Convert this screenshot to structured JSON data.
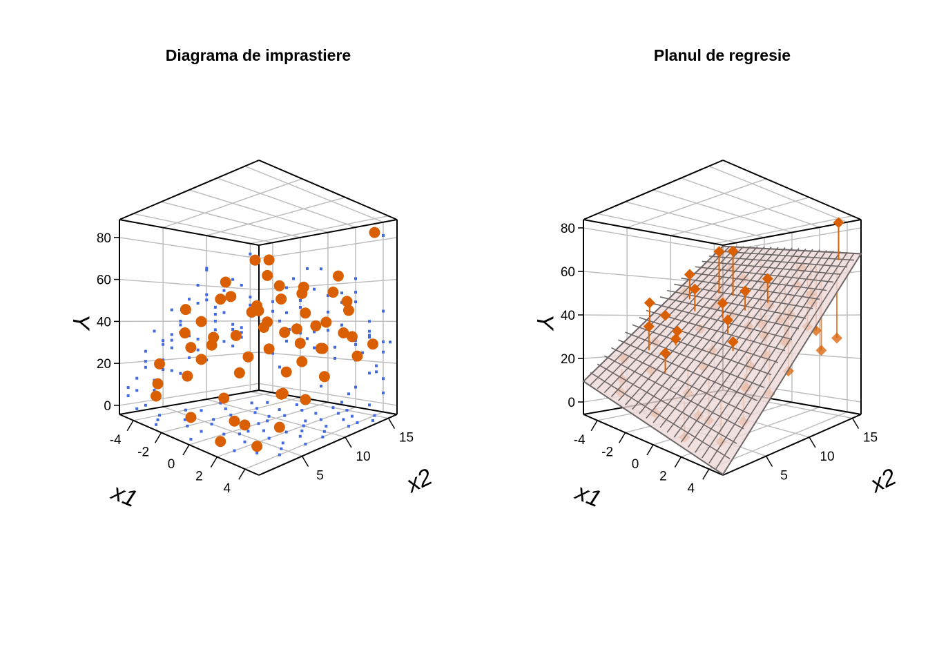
{
  "chart_data": [
    {
      "type": "scatter3d",
      "title": "Diagrama de imprastiere",
      "xlabel": "x1",
      "ylabel": "x2",
      "zlabel": "Y",
      "x1_range": [
        -5,
        5
      ],
      "x2_range": [
        0,
        16
      ],
      "y_range": [
        -4.3,
        88.5
      ],
      "x1_ticks": [
        "-4",
        "-2",
        "0",
        "2",
        "4"
      ],
      "x2_ticks": [
        "5",
        "10",
        "15"
      ],
      "y_ticks": [
        "0",
        "20",
        "40",
        "60",
        "80"
      ],
      "point_color": "#d95f02",
      "shadow_color": "#4169e1",
      "grid": true
    },
    {
      "type": "scatter3d+plane",
      "title": "Planul de regresie",
      "xlabel": "x1",
      "ylabel": "x2",
      "zlabel": "Y",
      "x1_range": [
        -5,
        5
      ],
      "x2_range": [
        0,
        16
      ],
      "y_range": [
        -5.7,
        83.8
      ],
      "x1_ticks": [
        "-4",
        "-2",
        "0",
        "2",
        "4"
      ],
      "x2_ticks": [
        "5",
        "10",
        "15"
      ],
      "y_ticks": [
        "0",
        "20",
        "40",
        "60",
        "80"
      ],
      "plane": {
        "intercept": 2,
        "b_x1": -1.5,
        "b_x2": 4.6
      },
      "point_color": "#d95f02",
      "plane_fill": "#ecd8d8",
      "plane_grid": "#6e6666",
      "grid": true
    }
  ],
  "points": [
    [
      -3.5,
      2,
      12
    ],
    [
      -2.8,
      4,
      35
    ],
    [
      -4,
      6,
      46
    ],
    [
      -1,
      3,
      25
    ],
    [
      0.5,
      5,
      20
    ],
    [
      2,
      2,
      6
    ],
    [
      3,
      3,
      -2
    ],
    [
      -2,
      8,
      52
    ],
    [
      -3,
      9,
      60
    ],
    [
      -1.5,
      10,
      70
    ],
    [
      -0.5,
      10,
      69
    ],
    [
      1,
      7,
      38
    ],
    [
      2,
      6,
      30
    ],
    [
      3.5,
      5,
      15
    ],
    [
      4,
      4,
      5
    ],
    [
      -3,
      5,
      28
    ],
    [
      -2,
      6,
      33
    ],
    [
      0,
      8,
      45
    ],
    [
      1,
      9,
      50
    ],
    [
      2,
      10,
      55
    ],
    [
      -1,
      12,
      58
    ],
    [
      0,
      13,
      54
    ],
    [
      3,
      11,
      40
    ],
    [
      4,
      12,
      45
    ],
    [
      2,
      14,
      62
    ],
    [
      4,
      15,
      82
    ],
    [
      1,
      15,
      55
    ],
    [
      3,
      13,
      35
    ],
    [
      2.5,
      9,
      24
    ],
    [
      -2,
      3,
      17
    ],
    [
      -4,
      3,
      20
    ],
    [
      0,
      4,
      10
    ],
    [
      1.5,
      4,
      2
    ],
    [
      -3,
      1,
      8
    ],
    [
      3,
      8,
      32
    ],
    [
      4,
      9,
      30
    ],
    [
      0,
      11,
      35
    ],
    [
      -1,
      14,
      36
    ],
    [
      1,
      13,
      38
    ],
    [
      3,
      14,
      33
    ],
    [
      4.5,
      14,
      30
    ],
    [
      2,
      12,
      28
    ],
    [
      -2,
      11,
      48
    ],
    [
      -3,
      12,
      45
    ],
    [
      0.5,
      6,
      26
    ],
    [
      -1,
      7,
      34
    ],
    [
      2,
      8,
      20
    ],
    [
      3.5,
      10,
      18
    ],
    [
      4,
      7,
      12
    ],
    [
      1,
      2,
      -3
    ],
    [
      -0.5,
      1,
      4
    ],
    [
      -2.5,
      13,
      65
    ],
    [
      2,
      15,
      50
    ],
    [
      4,
      13,
      25
    ],
    [
      0,
      9,
      40
    ],
    [
      -3.5,
      7,
      40
    ],
    [
      1.5,
      11,
      44
    ],
    [
      -1.5,
      5,
      30
    ],
    [
      3,
      6,
      14
    ],
    [
      -4,
      10,
      52
    ]
  ]
}
